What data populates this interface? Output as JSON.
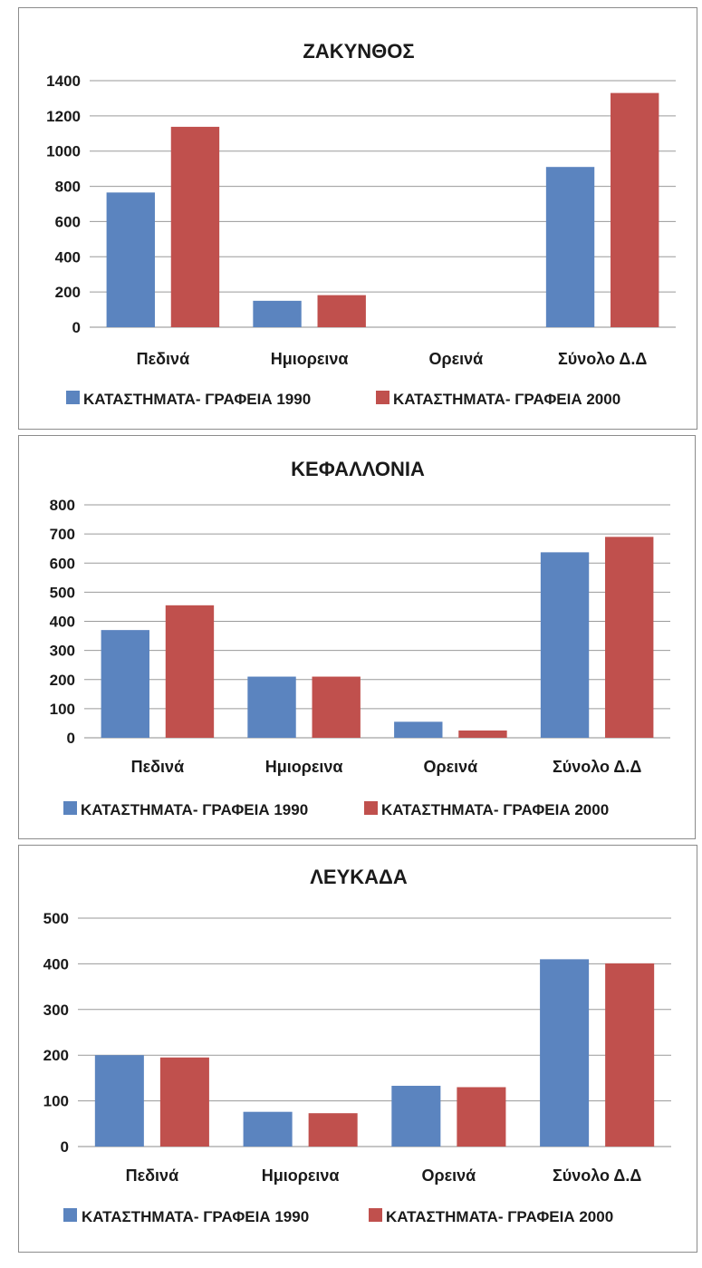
{
  "chart_data": [
    {
      "type": "bar",
      "title": "ΖΑΚΥΝΘΟΣ",
      "categories": [
        "Πεδινά",
        "Ημιορεινα",
        "Ορεινά",
        "Σύνολο Δ.Δ"
      ],
      "series": [
        {
          "name": "ΚΑΤΑΣΤΗΜΑΤΑ- ΓΡΑΦΕΙΑ 1990",
          "color": "#5b84bf",
          "values": [
            765,
            150,
            0,
            910
          ]
        },
        {
          "name": "ΚΑΤΑΣΤΗΜΑΤΑ- ΓΡΑΦΕΙΑ 2000",
          "color": "#c0504d",
          "values": [
            1138,
            182,
            0,
            1330
          ]
        }
      ],
      "yticks": [
        0,
        200,
        400,
        600,
        800,
        1000,
        1200,
        1400
      ],
      "ylim": [
        0,
        1400
      ],
      "xlabel": "",
      "ylabel": "",
      "grid": true,
      "legend": "bottom"
    },
    {
      "type": "bar",
      "title": "ΚΕΦΑΛΛΟΝΙΑ",
      "categories": [
        "Πεδινά",
        "Ημιορεινα",
        "Ορεινά",
        "Σύνολο Δ.Δ"
      ],
      "series": [
        {
          "name": "ΚΑΤΑΣΤΗΜΑΤΑ- ΓΡΑΦΕΙΑ 1990",
          "color": "#5b84bf",
          "values": [
            370,
            210,
            55,
            637
          ]
        },
        {
          "name": "ΚΑΤΑΣΤΗΜΑΤΑ- ΓΡΑΦΕΙΑ 2000",
          "color": "#c0504d",
          "values": [
            455,
            210,
            25,
            690
          ]
        }
      ],
      "yticks": [
        0,
        100,
        200,
        300,
        400,
        500,
        600,
        700,
        800
      ],
      "ylim": [
        0,
        800
      ],
      "xlabel": "",
      "ylabel": "",
      "grid": true,
      "legend": "bottom"
    },
    {
      "type": "bar",
      "title": "ΛΕΥΚΑΔΑ",
      "categories": [
        "Πεδινά",
        "Ημιορεινα",
        "Ορεινά",
        "Σύνολο Δ.Δ"
      ],
      "series": [
        {
          "name": "ΚΑΤΑΣΤΗΜΑΤΑ- ΓΡΑΦΕΙΑ 1990",
          "color": "#5b84bf",
          "values": [
            200,
            76,
            133,
            410
          ]
        },
        {
          "name": "ΚΑΤΑΣΤΗΜΑΤΑ- ΓΡΑΦΕΙΑ 2000",
          "color": "#c0504d",
          "values": [
            195,
            73,
            130,
            401
          ]
        }
      ],
      "yticks": [
        0,
        100,
        200,
        300,
        400,
        500
      ],
      "ylim": [
        0,
        500
      ],
      "xlabel": "",
      "ylabel": "",
      "grid": true,
      "legend": "bottom"
    }
  ]
}
